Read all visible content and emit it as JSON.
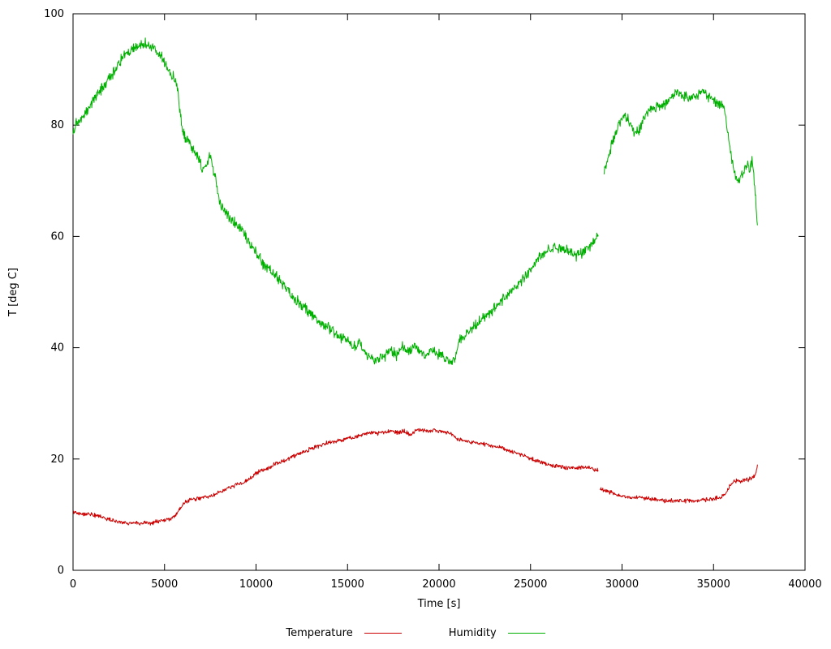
{
  "chart_data": {
    "type": "line",
    "title": "",
    "xlabel": "Time [s]",
    "ylabel": "T [deg C]",
    "xlim": [
      0,
      40000
    ],
    "ylim": [
      0,
      100
    ],
    "x_ticks": [
      0,
      5000,
      10000,
      15000,
      20000,
      25000,
      30000,
      35000,
      40000
    ],
    "y_ticks": [
      0,
      20,
      40,
      60,
      80,
      100
    ],
    "grid": false,
    "legend_position": "bottom-center",
    "background": "#ffffff",
    "axis_color": "#000000",
    "series": [
      {
        "name": "Temperature",
        "color": "#cc0000",
        "noise": 0.3,
        "segments": [
          [
            [
              0,
              10.5
            ],
            [
              300,
              10.2
            ],
            [
              600,
              10.1
            ],
            [
              900,
              10.2
            ],
            [
              1200,
              9.8
            ],
            [
              1500,
              9.6
            ],
            [
              1800,
              9.3
            ],
            [
              2100,
              9.0
            ],
            [
              2400,
              8.8
            ],
            [
              2700,
              8.6
            ],
            [
              3000,
              8.5
            ],
            [
              3400,
              8.5
            ],
            [
              3800,
              8.5
            ],
            [
              4200,
              8.5
            ],
            [
              4600,
              8.7
            ],
            [
              5000,
              9.0
            ],
            [
              5400,
              9.4
            ],
            [
              5700,
              10.2
            ],
            [
              5900,
              11.5
            ],
            [
              6100,
              12.2
            ],
            [
              6400,
              12.6
            ],
            [
              6700,
              12.8
            ],
            [
              7000,
              13.0
            ],
            [
              7300,
              13.2
            ],
            [
              7600,
              13.4
            ],
            [
              7900,
              13.8
            ],
            [
              8200,
              14.3
            ],
            [
              8500,
              14.8
            ],
            [
              8800,
              15.2
            ],
            [
              9100,
              15.5
            ],
            [
              9400,
              16.0
            ],
            [
              9700,
              16.6
            ],
            [
              10000,
              17.4
            ],
            [
              10300,
              17.9
            ],
            [
              10600,
              18.2
            ],
            [
              10900,
              18.8
            ],
            [
              11200,
              19.3
            ],
            [
              11500,
              19.7
            ],
            [
              11800,
              20.1
            ],
            [
              12100,
              20.6
            ],
            [
              12400,
              21.0
            ],
            [
              12700,
              21.4
            ],
            [
              13000,
              21.9
            ],
            [
              13400,
              22.3
            ],
            [
              13800,
              22.8
            ],
            [
              14200,
              23.1
            ],
            [
              14600,
              23.4
            ],
            [
              15000,
              23.7
            ],
            [
              15400,
              23.9
            ],
            [
              15800,
              24.3
            ],
            [
              16200,
              24.8
            ],
            [
              16600,
              24.6
            ],
            [
              17000,
              24.8
            ],
            [
              17400,
              25.0
            ],
            [
              17800,
              24.8
            ],
            [
              18100,
              25.1
            ],
            [
              18400,
              24.3
            ],
            [
              18600,
              24.9
            ],
            [
              19000,
              25.3
            ],
            [
              19400,
              25.0
            ],
            [
              19800,
              25.2
            ],
            [
              20200,
              24.9
            ],
            [
              20600,
              24.6
            ],
            [
              21000,
              23.6
            ],
            [
              21400,
              23.2
            ],
            [
              21800,
              23.0
            ],
            [
              22200,
              22.9
            ],
            [
              22600,
              22.6
            ],
            [
              23000,
              22.3
            ],
            [
              23400,
              22.0
            ],
            [
              23800,
              21.5
            ],
            [
              24200,
              21.1
            ],
            [
              24600,
              20.6
            ],
            [
              25000,
              20.1
            ],
            [
              25400,
              19.6
            ],
            [
              25800,
              19.2
            ],
            [
              26200,
              18.8
            ],
            [
              26600,
              18.6
            ],
            [
              27000,
              18.5
            ],
            [
              27400,
              18.4
            ],
            [
              27800,
              18.5
            ],
            [
              28200,
              18.4
            ],
            [
              28700,
              18.0
            ]
          ],
          [
            [
              28800,
              14.6
            ],
            [
              29100,
              14.3
            ],
            [
              29400,
              14.0
            ],
            [
              29700,
              13.6
            ],
            [
              30000,
              13.3
            ],
            [
              30300,
              13.1
            ],
            [
              30600,
              13.0
            ],
            [
              30900,
              13.2
            ],
            [
              31200,
              13.0
            ],
            [
              31500,
              12.9
            ],
            [
              31800,
              12.8
            ],
            [
              32100,
              12.6
            ],
            [
              32400,
              12.5
            ],
            [
              32700,
              12.5
            ],
            [
              33000,
              12.5
            ],
            [
              33300,
              12.4
            ],
            [
              33600,
              12.5
            ],
            [
              33900,
              12.5
            ],
            [
              34200,
              12.6
            ],
            [
              34500,
              12.6
            ],
            [
              34800,
              12.8
            ],
            [
              35100,
              13.0
            ],
            [
              35400,
              13.1
            ],
            [
              35700,
              13.9
            ],
            [
              35900,
              15.3
            ],
            [
              36100,
              15.9
            ],
            [
              36300,
              16.1
            ],
            [
              36500,
              16.0
            ],
            [
              36700,
              16.2
            ],
            [
              36900,
              16.3
            ],
            [
              37100,
              16.5
            ],
            [
              37300,
              17.2
            ],
            [
              37400,
              19.0
            ]
          ]
        ]
      },
      {
        "name": "Humidity",
        "color": "#00b000",
        "noise": 0.8,
        "segments": [
          [
            [
              0,
              78.5
            ],
            [
              200,
              80.5
            ],
            [
              400,
              81.0
            ],
            [
              600,
              81.5
            ],
            [
              800,
              83.0
            ],
            [
              1000,
              84.0
            ],
            [
              1300,
              85.5
            ],
            [
              1600,
              86.5
            ],
            [
              1900,
              88.0
            ],
            [
              2200,
              89.5
            ],
            [
              2500,
              91.0
            ],
            [
              2800,
              92.5
            ],
            [
              3100,
              93.5
            ],
            [
              3400,
              94.0
            ],
            [
              3700,
              94.3
            ],
            [
              4000,
              94.5
            ],
            [
              4300,
              94.2
            ],
            [
              4600,
              93.3
            ],
            [
              4900,
              92.0
            ],
            [
              5200,
              90.0
            ],
            [
              5500,
              88.5
            ],
            [
              5700,
              87.0
            ],
            [
              5850,
              82.0
            ],
            [
              6000,
              78.5
            ],
            [
              6200,
              77.5
            ],
            [
              6400,
              76.5
            ],
            [
              6600,
              75.5
            ],
            [
              6900,
              73.5
            ],
            [
              7100,
              72.0
            ],
            [
              7300,
              72.5
            ],
            [
              7450,
              74.5
            ],
            [
              7600,
              73.0
            ],
            [
              7800,
              70.5
            ],
            [
              8000,
              66.5
            ],
            [
              8200,
              65.0
            ],
            [
              8500,
              63.5
            ],
            [
              8800,
              62.5
            ],
            [
              9100,
              61.5
            ],
            [
              9400,
              60.0
            ],
            [
              9700,
              58.5
            ],
            [
              10000,
              57.0
            ],
            [
              10300,
              55.5
            ],
            [
              10600,
              54.5
            ],
            [
              10900,
              53.5
            ],
            [
              11200,
              52.3
            ],
            [
              11500,
              51.0
            ],
            [
              11800,
              50.0
            ],
            [
              12100,
              49.0
            ],
            [
              12400,
              48.0
            ],
            [
              12700,
              47.0
            ],
            [
              13000,
              46.0
            ],
            [
              13300,
              45.0
            ],
            [
              13600,
              44.3
            ],
            [
              14000,
              43.5
            ],
            [
              14400,
              42.5
            ],
            [
              14700,
              41.8
            ],
            [
              15000,
              41.5
            ],
            [
              15300,
              40.0
            ],
            [
              15600,
              41.0
            ],
            [
              15900,
              39.5
            ],
            [
              16200,
              38.5
            ],
            [
              16500,
              37.5
            ],
            [
              16800,
              38.0
            ],
            [
              17100,
              38.8
            ],
            [
              17400,
              39.5
            ],
            [
              17700,
              38.5
            ],
            [
              18000,
              40.0
            ],
            [
              18300,
              39.0
            ],
            [
              18600,
              40.5
            ],
            [
              18900,
              39.5
            ],
            [
              19200,
              38.5
            ],
            [
              19500,
              39.5
            ],
            [
              19800,
              39.0
            ],
            [
              20100,
              38.5
            ],
            [
              20400,
              38.0
            ],
            [
              20700,
              37.0
            ],
            [
              20900,
              38.5
            ],
            [
              21100,
              41.5
            ],
            [
              21400,
              42.0
            ],
            [
              21700,
              43.0
            ],
            [
              22000,
              44.0
            ],
            [
              22400,
              45.2
            ],
            [
              22800,
              46.5
            ],
            [
              23200,
              47.8
            ],
            [
              23600,
              49.0
            ],
            [
              24000,
              50.2
            ],
            [
              24400,
              51.8
            ],
            [
              24800,
              53.2
            ],
            [
              25100,
              54.5
            ],
            [
              25400,
              56.0
            ],
            [
              25700,
              57.0
            ],
            [
              26000,
              57.5
            ],
            [
              26400,
              58.0
            ],
            [
              26800,
              57.8
            ],
            [
              27100,
              57.2
            ],
            [
              27400,
              56.5
            ],
            [
              27700,
              57.0
            ],
            [
              28000,
              57.5
            ],
            [
              28300,
              58.5
            ],
            [
              28700,
              60.0
            ]
          ],
          [
            [
              29000,
              71.0
            ],
            [
              29200,
              73.5
            ],
            [
              29400,
              76.0
            ],
            [
              29600,
              78.0
            ],
            [
              29800,
              80.0
            ],
            [
              30000,
              81.0
            ],
            [
              30200,
              81.5
            ],
            [
              30400,
              80.5
            ],
            [
              30600,
              79.0
            ],
            [
              30800,
              78.5
            ],
            [
              31000,
              79.5
            ],
            [
              31200,
              81.5
            ],
            [
              31500,
              82.5
            ],
            [
              31800,
              83.0
            ],
            [
              32100,
              83.5
            ],
            [
              32400,
              84.0
            ],
            [
              32700,
              85.3
            ],
            [
              33000,
              86.0
            ],
            [
              33300,
              85.5
            ],
            [
              33600,
              84.8
            ],
            [
              33900,
              85.0
            ],
            [
              34200,
              85.8
            ],
            [
              34500,
              86.0
            ],
            [
              34700,
              85.2
            ],
            [
              35000,
              84.5
            ],
            [
              35300,
              83.8
            ],
            [
              35600,
              83.2
            ],
            [
              35800,
              78.0
            ],
            [
              36000,
              73.5
            ],
            [
              36200,
              70.5
            ],
            [
              36400,
              70.0
            ],
            [
              36600,
              71.5
            ],
            [
              36800,
              73.0
            ],
            [
              37000,
              71.5
            ],
            [
              37100,
              73.5
            ],
            [
              37250,
              69.0
            ],
            [
              37400,
              62.0
            ]
          ]
        ]
      }
    ]
  }
}
